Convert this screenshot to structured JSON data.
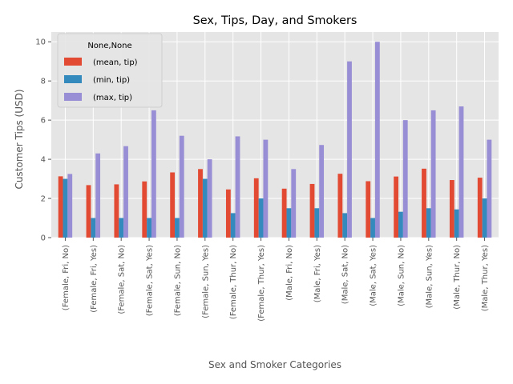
{
  "chart_data": {
    "type": "bar",
    "title": "Sex, Tips, Day, and Smokers",
    "xlabel": "Sex and Smoker Categories",
    "ylabel": "Customer Tips (USD)",
    "ylim": [
      0,
      10.5
    ],
    "yticks": [
      "0",
      "2",
      "4",
      "6",
      "8",
      "10"
    ],
    "grid": true,
    "legend_title": "None,None",
    "legend_position": "upper left",
    "categories": [
      "(Female, Fri, No)",
      "(Female, Fri, Yes)",
      "(Female, Sat, No)",
      "(Female, Sat, Yes)",
      "(Female, Sun, No)",
      "(Female, Sun, Yes)",
      "(Female, Thur, No)",
      "(Female, Thur, Yes)",
      "(Male, Fri, No)",
      "(Male, Fri, Yes)",
      "(Male, Sat, No)",
      "(Male, Sat, Yes)",
      "(Male, Sun, No)",
      "(Male, Sun, Yes)",
      "(Male, Thur, No)",
      "(Male, Thur, Yes)"
    ],
    "series": [
      {
        "name": "(mean, tip)",
        "color": "#E24A33",
        "values": [
          3.13,
          2.68,
          2.72,
          2.87,
          3.33,
          3.5,
          2.46,
          3.03,
          2.5,
          2.74,
          3.26,
          2.88,
          3.12,
          3.52,
          2.94,
          3.06
        ]
      },
      {
        "name": "(min, tip)",
        "color": "#348ABD",
        "values": [
          3.0,
          1.0,
          1.0,
          1.0,
          1.0,
          3.0,
          1.25,
          2.0,
          1.5,
          1.5,
          1.25,
          1.0,
          1.32,
          1.5,
          1.44,
          2.0
        ]
      },
      {
        "name": "(max, tip)",
        "color": "#988ED5",
        "values": [
          3.25,
          4.3,
          4.67,
          6.5,
          5.2,
          4.0,
          5.17,
          5.0,
          3.5,
          4.73,
          9.0,
          10.0,
          6.0,
          6.5,
          6.7,
          5.0
        ]
      }
    ]
  }
}
